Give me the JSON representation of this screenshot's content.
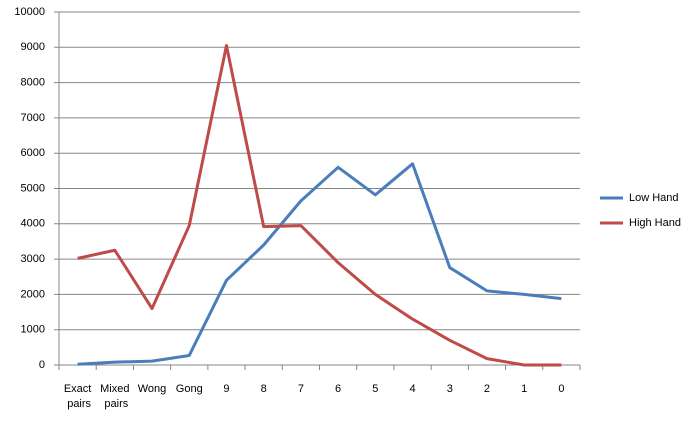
{
  "chart_data": {
    "type": "line",
    "categories": [
      "Exact pairs",
      "Mixed pairs",
      "Wong",
      "Gong",
      "9",
      "8",
      "7",
      "6",
      "5",
      "4",
      "3",
      "2",
      "1",
      "0"
    ],
    "series": [
      {
        "name": "Low Hand",
        "color": "#4a7ebb",
        "values": [
          20,
          80,
          110,
          270,
          2400,
          3400,
          4650,
          5600,
          4820,
          5700,
          2760,
          2100,
          2000,
          1880
        ]
      },
      {
        "name": "High Hand",
        "color": "#be4b48",
        "values": [
          3020,
          3250,
          1600,
          3950,
          9050,
          3920,
          3950,
          2900,
          2000,
          1300,
          700,
          180,
          0,
          0
        ]
      }
    ],
    "ylim": [
      0,
      10000
    ],
    "yticks": [
      0,
      1000,
      2000,
      3000,
      4000,
      5000,
      6000,
      7000,
      8000,
      9000,
      10000
    ],
    "grid": true,
    "legend": "right"
  }
}
